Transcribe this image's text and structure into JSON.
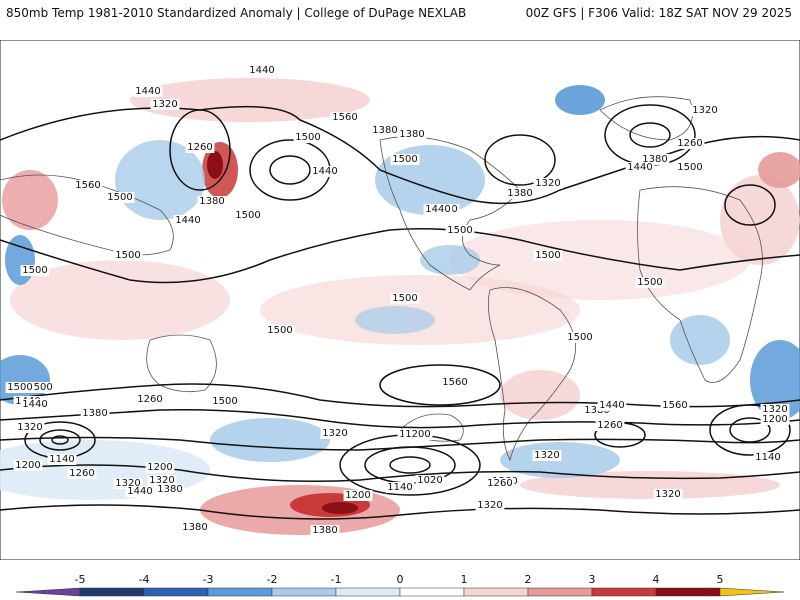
{
  "header": {
    "left_title": "850mb Temp 1981-2010 Standardized Anomaly | College of DuPage NEXLAB",
    "right_title": "00Z GFS | F306 Valid: 18Z SAT NOV 29 2025"
  },
  "colorbar": {
    "ticks": [
      "-5",
      "-4",
      "-3",
      "-2",
      "-1",
      "0",
      "1",
      "2",
      "3",
      "4",
      "5"
    ],
    "colors": [
      "#6b3fa0",
      "#1f3a6e",
      "#2d63b0",
      "#5a9ad6",
      "#a9cbea",
      "#ddeaf6",
      "#ffffff",
      "#f6d4d4",
      "#e79a9a",
      "#c93a3a",
      "#8b0f16",
      "#f2c21b"
    ]
  },
  "contour_labels": [
    "1440",
    "1440",
    "1320",
    "1560",
    "1380",
    "1500",
    "1260",
    "1380",
    "1440",
    "1440",
    "1500",
    "1500",
    "1560",
    "1500",
    "1440",
    "1500",
    "1320",
    "1500",
    "1380",
    "1500",
    "1440",
    "1500",
    "1500",
    "1500",
    "1320",
    "1260",
    "1500",
    "1380",
    "1500",
    "1440",
    "1500",
    "1380",
    "1500",
    "1500",
    "1560",
    "1440",
    "1320",
    "1440",
    "1320",
    "1200",
    "1200",
    "1260",
    "1380",
    "1500",
    "1500",
    "1140",
    "1200",
    "1320",
    "1200",
    "1380",
    "1260",
    "1380",
    "1260",
    "1320",
    "1140",
    "1200",
    "1440",
    "1380",
    "1200",
    "1320",
    "1320",
    "1020",
    "1380",
    "1260",
    "1440",
    "1560",
    "1500",
    "1320",
    "1320",
    "1140",
    "1260",
    "1440"
  ]
}
